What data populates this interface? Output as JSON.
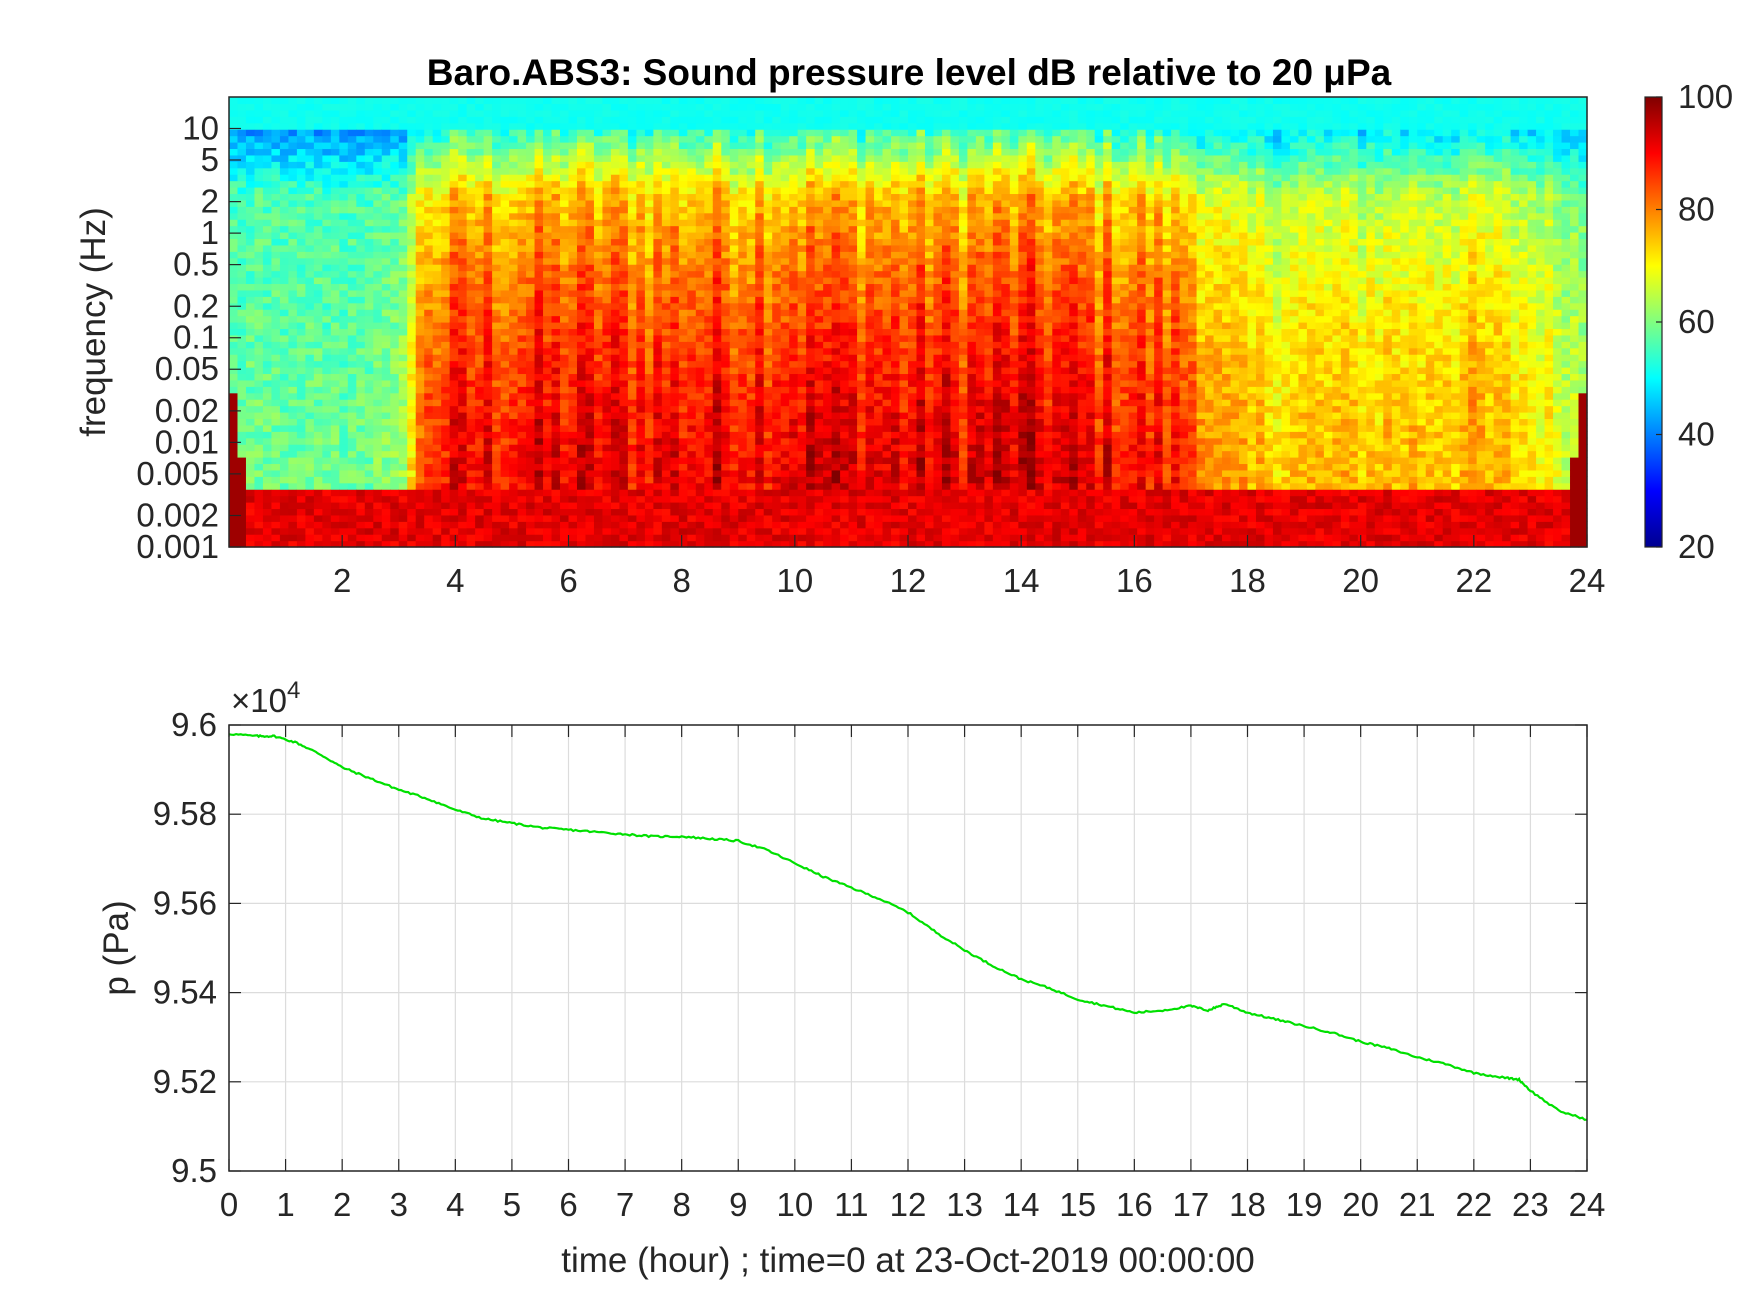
{
  "chart_data": [
    {
      "type": "heatmap",
      "title": "Baro.ABS3: Sound pressure level dB relative to 20 μPa",
      "ylabel": "frequency (Hz)",
      "xlabel": "",
      "xlim": [
        0,
        24
      ],
      "x_ticks": [
        2,
        4,
        6,
        8,
        10,
        12,
        14,
        16,
        18,
        20,
        22,
        24
      ],
      "y_scale": "log",
      "ylim": [
        0.001,
        20
      ],
      "y_ticks": [
        0.001,
        0.002,
        0.005,
        0.01,
        0.02,
        0.05,
        0.1,
        0.2,
        0.5,
        1,
        2,
        5,
        10
      ],
      "y_tick_labels": [
        "0.001",
        "0.002",
        "0.005",
        "0.01",
        "0.02",
        "0.05",
        "0.1",
        "0.2",
        "0.5",
        "1",
        "2",
        "5",
        "10"
      ],
      "colorbar": {
        "colormap": "jet",
        "clim": [
          20,
          100
        ],
        "ticks": [
          20,
          40,
          60,
          80,
          100
        ]
      },
      "colormap_stops": [
        "#00008f",
        "#0000ff",
        "#0080ff",
        "#00ffff",
        "#80ff80",
        "#ffff00",
        "#ff8000",
        "#ff0000",
        "#800000"
      ],
      "level_profile": {
        "time": [
          0,
          1,
          2,
          3,
          3.5,
          4,
          6,
          8,
          10,
          12,
          14,
          15,
          16,
          17,
          17.5,
          18,
          20,
          22,
          23,
          24
        ],
        "activity": [
          0.15,
          0.15,
          0.15,
          0.2,
          0.85,
          0.9,
          0.95,
          0.95,
          1.0,
          0.95,
          1.0,
          0.95,
          0.9,
          0.85,
          0.6,
          0.55,
          0.55,
          0.6,
          0.5,
          0.3
        ]
      }
    },
    {
      "type": "line",
      "title": "",
      "xlabel": "time (hour) ; time=0 at 23-Oct-2019 00:00:00",
      "ylabel": "p (Pa)",
      "xlim": [
        0,
        24
      ],
      "x_ticks": [
        0,
        1,
        2,
        3,
        4,
        5,
        6,
        7,
        8,
        9,
        10,
        11,
        12,
        13,
        14,
        15,
        16,
        17,
        18,
        19,
        20,
        21,
        22,
        23,
        24
      ],
      "ylim": [
        95000,
        96000
      ],
      "y_ticks": [
        95000,
        95200,
        95400,
        95600,
        95800,
        96000
      ],
      "y_tick_labels": [
        "9.5",
        "9.52",
        "9.54",
        "9.56",
        "9.58",
        "9.6"
      ],
      "y_multiplier": "×10",
      "y_multiplier_exp": "4",
      "grid": true,
      "series": [
        {
          "color": "#00e000",
          "x": [
            0,
            0.5,
            0.8,
            1.2,
            1.6,
            2,
            2.5,
            3,
            3.5,
            4,
            4.5,
            5,
            5.5,
            6,
            6.5,
            7,
            7.5,
            8,
            8.5,
            9,
            9.5,
            10,
            10.5,
            11,
            11.5,
            12,
            12.5,
            13,
            13.5,
            14,
            14.5,
            15,
            15.5,
            16,
            16.5,
            17,
            17.3,
            17.6,
            18,
            18.5,
            19,
            19.5,
            20,
            20.5,
            21,
            21.5,
            22,
            22.5,
            22.8,
            23,
            23.5,
            24
          ],
          "y": [
            95980,
            95975,
            95975,
            95960,
            95935,
            95905,
            95880,
            95855,
            95835,
            95810,
            95790,
            95780,
            95770,
            95765,
            95760,
            95755,
            95750,
            95750,
            95745,
            95740,
            95720,
            95690,
            95660,
            95635,
            95610,
            95580,
            95535,
            95495,
            95460,
            95430,
            95410,
            95385,
            95370,
            95355,
            95360,
            95370,
            95360,
            95375,
            95355,
            95340,
            95325,
            95310,
            95290,
            95275,
            95255,
            95240,
            95220,
            95210,
            95205,
            95180,
            95135,
            95115
          ]
        }
      ]
    }
  ]
}
